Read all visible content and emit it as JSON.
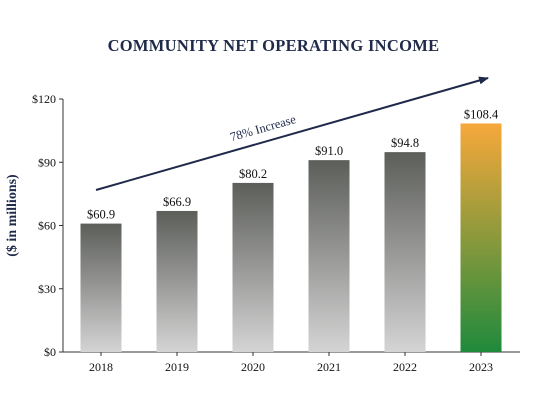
{
  "chart_data": {
    "type": "bar",
    "title": "COMMUNITY NET OPERATING INCOME",
    "ylabel": "($ in millions)",
    "xlabel": "",
    "categories": [
      "2018",
      "2019",
      "2020",
      "2021",
      "2022",
      "2023"
    ],
    "values": [
      60.9,
      66.9,
      80.2,
      91.0,
      94.8,
      108.4
    ],
    "value_labels": [
      "$60.9",
      "$66.9",
      "$80.2",
      "$91.0",
      "$94.8",
      "$108.4"
    ],
    "ylim": [
      0,
      120
    ],
    "yticks": [
      0,
      30,
      60,
      90,
      120
    ],
    "ytick_labels": [
      "$0",
      "$30",
      "$60",
      "$90",
      "$120"
    ],
    "grid": false,
    "annotation": "78% Increase",
    "colors": {
      "default_bar_top": "#5c5e5a",
      "default_bar_bottom": "#d4d4d4",
      "highlight_bar_top": "#f7a83b",
      "highlight_bar_bottom": "#1f8a3c",
      "title": "#1f2a4a",
      "arrow": "#1f2a4a"
    },
    "highlight_index": 5
  }
}
